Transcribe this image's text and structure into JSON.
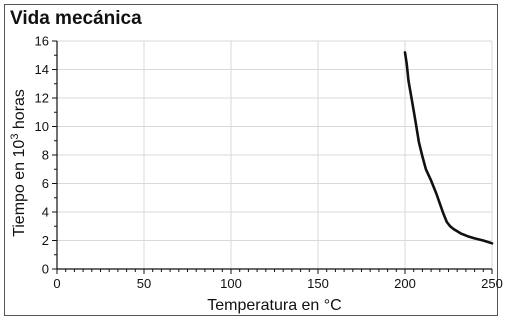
{
  "chart_data": {
    "type": "line",
    "title": "Vida mecánica",
    "xlabel": "Temperatura en °C",
    "ylabel": {
      "base": "Tiempo en 10",
      "sup": "3",
      "rest": " horas"
    },
    "xlim": [
      0,
      250
    ],
    "ylim": [
      0,
      16
    ],
    "xticks": [
      0,
      50,
      100,
      150,
      200,
      250
    ],
    "yticks": [
      0,
      2,
      4,
      6,
      8,
      10,
      12,
      14,
      16
    ],
    "grid": true,
    "series": [
      {
        "color": "#111111",
        "x": [
          200,
          201,
          202,
          204,
          206,
          208,
          210,
          212,
          215,
          218,
          220,
          222,
          224,
          226,
          228,
          232,
          236,
          240,
          245,
          250
        ],
        "y": [
          15.2,
          14.4,
          13.2,
          11.8,
          10.4,
          8.9,
          7.9,
          7.0,
          6.2,
          5.3,
          4.6,
          3.9,
          3.3,
          3.0,
          2.8,
          2.5,
          2.3,
          2.15,
          2.0,
          1.8
        ]
      }
    ]
  }
}
